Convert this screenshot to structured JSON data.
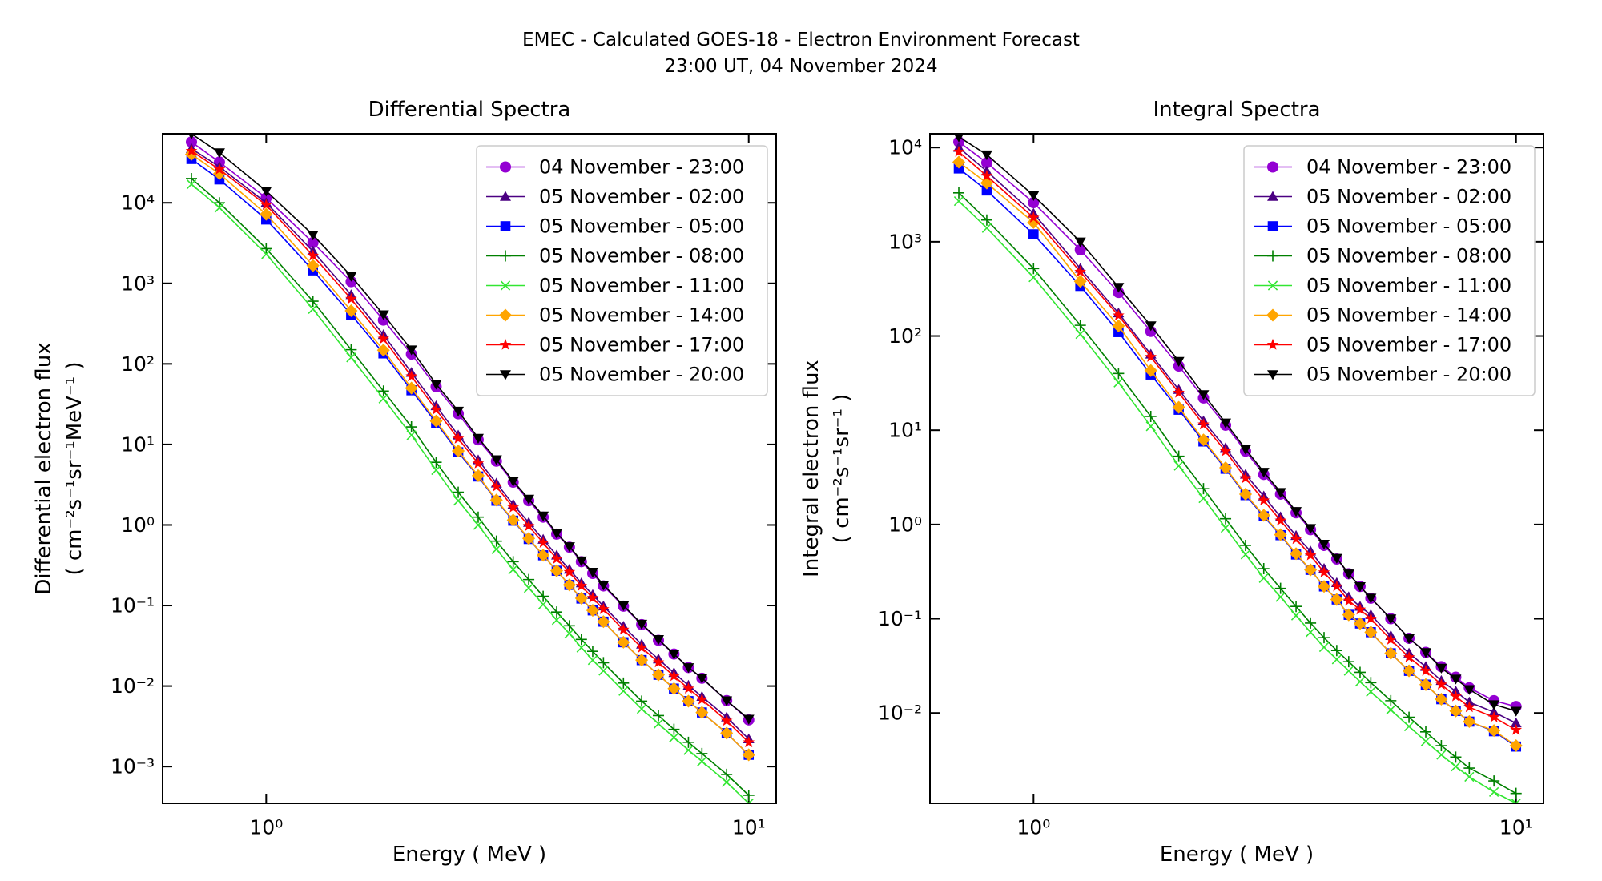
{
  "figure": {
    "title": "EMEC - Calculated GOES-18 - Electron Environment Forecast",
    "subtitle": "23:00 UT, 04 November 2024"
  },
  "chart_data": [
    {
      "type": "line",
      "title": "Differential Spectra",
      "xlabel": "Energy ( MeV )",
      "ylabel": [
        "Differential electron flux",
        "( cm⁻²s⁻¹sr⁻¹MeV⁻¹ )"
      ],
      "log_x": true,
      "log_y": true,
      "legend": "upper right",
      "xlim": [
        0.61,
        11.4
      ],
      "ylim": [
        0.00035,
        72000
      ],
      "xticks": [
        {
          "value": 1,
          "label": "10⁰"
        },
        {
          "value": 10,
          "label": "10¹"
        }
      ],
      "yticks": [
        {
          "value": 0.001,
          "label": "10⁻³"
        },
        {
          "value": 0.01,
          "label": "10⁻²"
        },
        {
          "value": 0.1,
          "label": "10⁻¹"
        },
        {
          "value": 1,
          "label": "10⁰"
        },
        {
          "value": 10,
          "label": "10¹"
        },
        {
          "value": 100,
          "label": "10²"
        },
        {
          "value": 1000,
          "label": "10³"
        },
        {
          "value": 10000,
          "label": "10⁴"
        }
      ],
      "x": [
        0.7,
        0.8,
        1.0,
        1.25,
        1.5,
        1.75,
        2.0,
        2.25,
        2.5,
        2.75,
        3.0,
        3.25,
        3.5,
        3.75,
        4.0,
        4.25,
        4.5,
        4.75,
        5.0,
        5.5,
        6.0,
        6.5,
        7.0,
        7.5,
        8.0,
        9.0,
        10.0
      ],
      "series": [
        {
          "name": "04 November - 23:00",
          "color": "#9400d3",
          "marker": "circle",
          "values": [
            57000,
            32000,
            11500,
            3200,
            1050,
            350,
            132,
            52,
            24,
            11.4,
            6.2,
            3.4,
            2.0,
            1.25,
            0.77,
            0.53,
            0.35,
            0.25,
            0.175,
            0.098,
            0.058,
            0.037,
            0.025,
            0.017,
            0.0125,
            0.0066,
            0.0038
          ]
        },
        {
          "name": "05 November - 02:00",
          "color": "#4b0082",
          "marker": "triangle-up",
          "values": [
            47000,
            28000,
            10000,
            2500,
            720,
            230,
            78,
            30,
            13,
            6.4,
            3.3,
            1.8,
            1.07,
            0.66,
            0.42,
            0.28,
            0.19,
            0.136,
            0.098,
            0.055,
            0.033,
            0.0216,
            0.0146,
            0.0102,
            0.0074,
            0.0041,
            0.0022
          ]
        },
        {
          "name": "05 November - 05:00",
          "color": "#0000ff",
          "marker": "square",
          "values": [
            35000,
            19500,
            6200,
            1450,
            410,
            135,
            47,
            18.5,
            8.0,
            4.0,
            2.0,
            1.13,
            0.67,
            0.42,
            0.27,
            0.18,
            0.122,
            0.087,
            0.063,
            0.035,
            0.021,
            0.0138,
            0.0093,
            0.0065,
            0.0047,
            0.0026,
            0.0014
          ]
        },
        {
          "name": "05 November - 08:00",
          "color": "#008000",
          "marker": "plus",
          "values": [
            20000,
            10000,
            2700,
            600,
            150,
            46,
            16.5,
            6.0,
            2.55,
            1.25,
            0.63,
            0.35,
            0.21,
            0.13,
            0.083,
            0.056,
            0.038,
            0.027,
            0.0195,
            0.0109,
            0.0065,
            0.0043,
            0.0029,
            0.002,
            0.00145,
            0.0008,
            0.00044
          ]
        },
        {
          "name": "05 November - 11:00",
          "color": "#32e632",
          "marker": "x",
          "values": [
            17000,
            8700,
            2300,
            480,
            120,
            37,
            13,
            4.8,
            2.0,
            1.0,
            0.5,
            0.28,
            0.165,
            0.103,
            0.066,
            0.045,
            0.03,
            0.021,
            0.0155,
            0.0087,
            0.0052,
            0.0034,
            0.0023,
            0.0016,
            0.00116,
            0.00064,
            0.00035
          ]
        },
        {
          "name": "05 November - 14:00",
          "color": "#ffa500",
          "marker": "diamond",
          "values": [
            40000,
            23000,
            7200,
            1660,
            457,
            148,
            50,
            19.5,
            8.3,
            4.1,
            2.04,
            1.15,
            0.68,
            0.42,
            0.27,
            0.18,
            0.123,
            0.087,
            0.063,
            0.035,
            0.021,
            0.0138,
            0.0093,
            0.0065,
            0.0047,
            0.0026,
            0.0014
          ]
        },
        {
          "name": "05 November - 17:00",
          "color": "#ff0000",
          "marker": "star",
          "values": [
            44000,
            26000,
            9400,
            2200,
            640,
            205,
            70,
            27,
            11.8,
            5.8,
            3.0,
            1.65,
            0.97,
            0.6,
            0.38,
            0.26,
            0.175,
            0.124,
            0.09,
            0.05,
            0.03,
            0.0197,
            0.0133,
            0.0093,
            0.0068,
            0.0037,
            0.002
          ]
        },
        {
          "name": "05 November - 20:00",
          "color": "#000000",
          "marker": "triangle-down",
          "values": [
            72000,
            42000,
            14000,
            4000,
            1230,
            410,
            150,
            56,
            26,
            12,
            6.5,
            3.5,
            2.1,
            1.3,
            0.79,
            0.54,
            0.36,
            0.26,
            0.18,
            0.1,
            0.059,
            0.038,
            0.025,
            0.017,
            0.0126,
            0.0066,
            0.0039
          ]
        }
      ]
    },
    {
      "type": "line",
      "title": "Integral Spectra",
      "xlabel": "Energy ( MeV )",
      "ylabel": [
        "Integral electron flux",
        "( cm⁻²s⁻¹sr⁻¹ )"
      ],
      "log_x": true,
      "log_y": true,
      "legend": "upper right",
      "xlim": [
        0.61,
        11.4
      ],
      "ylim": [
        0.0011,
        14000
      ],
      "xticks": [
        {
          "value": 1,
          "label": "10⁰"
        },
        {
          "value": 10,
          "label": "10¹"
        }
      ],
      "yticks": [
        {
          "value": 0.01,
          "label": "10⁻²"
        },
        {
          "value": 0.1,
          "label": "10⁻¹"
        },
        {
          "value": 1,
          "label": "10⁰"
        },
        {
          "value": 10,
          "label": "10¹"
        },
        {
          "value": 100,
          "label": "10²"
        },
        {
          "value": 1000,
          "label": "10³"
        },
        {
          "value": 10000,
          "label": "10⁴"
        }
      ],
      "x": [
        0.7,
        0.8,
        1.0,
        1.25,
        1.5,
        1.75,
        2.0,
        2.25,
        2.5,
        2.75,
        3.0,
        3.25,
        3.5,
        3.75,
        4.0,
        4.25,
        4.5,
        4.75,
        5.0,
        5.5,
        6.0,
        6.5,
        7.0,
        7.5,
        8.0,
        9.0,
        10.0
      ],
      "series": [
        {
          "name": "04 November - 23:00",
          "color": "#9400d3",
          "marker": "circle",
          "values": [
            11500,
            6900,
            2600,
            820,
            290,
            112,
            48,
            22,
            11.3,
            6.0,
            3.4,
            2.1,
            1.33,
            0.88,
            0.6,
            0.43,
            0.3,
            0.22,
            0.165,
            0.1,
            0.062,
            0.044,
            0.031,
            0.024,
            0.0185,
            0.0135,
            0.0117
          ]
        },
        {
          "name": "05 November - 02:00",
          "color": "#4b0082",
          "marker": "triangle-up",
          "values": [
            10000,
            5600,
            2000,
            520,
            175,
            64,
            27,
            12.5,
            6.5,
            3.4,
            2.0,
            1.2,
            0.76,
            0.52,
            0.34,
            0.24,
            0.17,
            0.135,
            0.11,
            0.066,
            0.043,
            0.031,
            0.022,
            0.017,
            0.013,
            0.0102,
            0.0078
          ]
        },
        {
          "name": "05 November - 05:00",
          "color": "#0000ff",
          "marker": "square",
          "values": [
            6000,
            3500,
            1200,
            340,
            110,
            39,
            16.5,
            7.6,
            3.9,
            2.05,
            1.22,
            0.77,
            0.48,
            0.33,
            0.22,
            0.16,
            0.11,
            0.089,
            0.072,
            0.043,
            0.028,
            0.02,
            0.014,
            0.0105,
            0.0081,
            0.0064,
            0.0044
          ]
        },
        {
          "name": "05 November - 08:00",
          "color": "#008000",
          "marker": "plus",
          "values": [
            3300,
            1700,
            520,
            130,
            40,
            14,
            5.3,
            2.4,
            1.15,
            0.6,
            0.34,
            0.21,
            0.135,
            0.09,
            0.063,
            0.046,
            0.035,
            0.027,
            0.021,
            0.0135,
            0.009,
            0.0063,
            0.0045,
            0.0034,
            0.0026,
            0.0019,
            0.0014
          ]
        },
        {
          "name": "05 November - 11:00",
          "color": "#32e632",
          "marker": "x",
          "values": [
            2700,
            1400,
            420,
            105,
            32,
            11,
            4.2,
            1.9,
            0.92,
            0.48,
            0.27,
            0.17,
            0.108,
            0.072,
            0.05,
            0.037,
            0.028,
            0.0215,
            0.0168,
            0.0108,
            0.0072,
            0.005,
            0.0036,
            0.0027,
            0.0021,
            0.00145,
            0.0011
          ]
        },
        {
          "name": "05 November - 14:00",
          "color": "#ffa500",
          "marker": "diamond",
          "values": [
            7000,
            4200,
            1600,
            380,
            128,
            43,
            17.5,
            7.9,
            4.0,
            2.1,
            1.25,
            0.78,
            0.49,
            0.33,
            0.22,
            0.16,
            0.11,
            0.089,
            0.072,
            0.043,
            0.028,
            0.02,
            0.014,
            0.0105,
            0.0081,
            0.0065,
            0.0045
          ]
        },
        {
          "name": "05 November - 17:00",
          "color": "#ff0000",
          "marker": "star",
          "values": [
            9000,
            5000,
            1800,
            480,
            165,
            60,
            25,
            11.5,
            6.0,
            3.1,
            1.8,
            1.1,
            0.7,
            0.47,
            0.31,
            0.22,
            0.155,
            0.125,
            0.1,
            0.06,
            0.039,
            0.028,
            0.02,
            0.015,
            0.0115,
            0.009,
            0.0066
          ]
        },
        {
          "name": "05 November - 20:00",
          "color": "#000000",
          "marker": "triangle-down",
          "values": [
            13000,
            8400,
            3100,
            1000,
            330,
            129,
            54,
            24,
            12,
            6.3,
            3.6,
            2.2,
            1.38,
            0.91,
            0.62,
            0.44,
            0.3,
            0.22,
            0.166,
            0.1,
            0.062,
            0.044,
            0.03,
            0.023,
            0.0178,
            0.0123,
            0.0105
          ]
        }
      ]
    }
  ]
}
